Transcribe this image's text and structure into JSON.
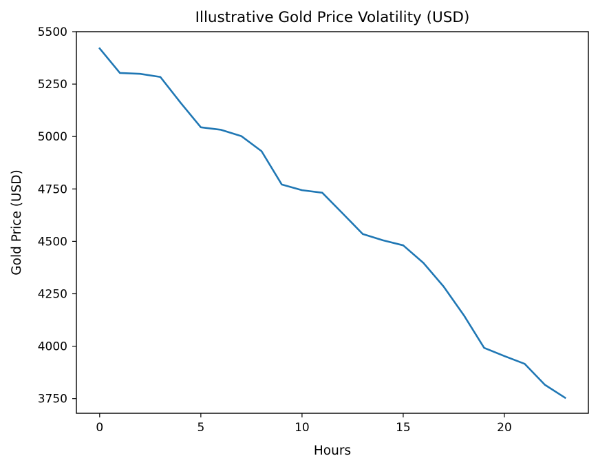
{
  "chart_data": {
    "type": "line",
    "title": "Illustrative Gold Price Volatility (USD)",
    "xlabel": "Hours",
    "ylabel": "Gold Price (USD)",
    "xlim": [
      -1.15,
      24.15
    ],
    "ylim": [
      3680,
      5500
    ],
    "xticks": [
      0,
      5,
      10,
      15,
      20
    ],
    "yticks": [
      3750,
      4000,
      4250,
      4500,
      4750,
      5000,
      5250,
      5500
    ],
    "grid": false,
    "legend": "none",
    "series": [
      {
        "color": "#1f77b4",
        "x": [
          0,
          1,
          2,
          3,
          4,
          5,
          6,
          7,
          8,
          9,
          10,
          11,
          12,
          13,
          14,
          15,
          16,
          17,
          18,
          19,
          20,
          21,
          22,
          23
        ],
        "y": [
          5420,
          5303,
          5299,
          5284,
          5161,
          5044,
          5032,
          5002,
          4930,
          4771,
          4744,
          4732,
          4634,
          4535,
          4505,
          4481,
          4397,
          4284,
          4147,
          3992,
          3953,
          3916,
          3816,
          3754
        ]
      }
    ]
  }
}
